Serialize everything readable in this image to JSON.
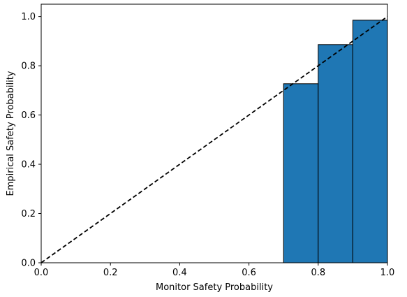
{
  "chart_data": {
    "type": "bar",
    "title": "",
    "xlabel": "Monitor Safety Probability",
    "ylabel": "Empirical Safety Probability",
    "xlim": [
      0.0,
      1.0
    ],
    "ylim": [
      0.0,
      1.05
    ],
    "xticks": [
      "0.0",
      "0.2",
      "0.4",
      "0.6",
      "0.8",
      "1.0"
    ],
    "yticks": [
      "0.0",
      "0.2",
      "0.4",
      "0.6",
      "0.8",
      "1.0"
    ],
    "bins": [
      {
        "x0": 0.7,
        "x1": 0.8,
        "value": 0.727
      },
      {
        "x0": 0.8,
        "x1": 0.9,
        "value": 0.886
      },
      {
        "x0": 0.9,
        "x1": 1.0,
        "value": 0.985
      }
    ],
    "reference_line": {
      "from": [
        0.0,
        0.0
      ],
      "to": [
        1.0,
        1.0
      ],
      "style": "dashed"
    },
    "grid": false,
    "bar_color": "#1f77b4",
    "bar_edge_color": "#000000"
  }
}
